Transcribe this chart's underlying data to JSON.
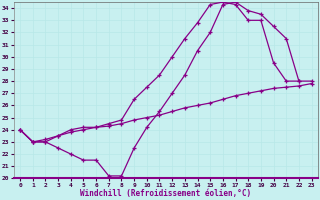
{
  "xlabel": "Windchill (Refroidissement éolien,°C)",
  "bg_color": "#c8f0f0",
  "grid_color": "#a0d8d8",
  "line_color": "#880088",
  "xlim": [
    -0.5,
    23.5
  ],
  "ylim": [
    20,
    34.5
  ],
  "xticks": [
    0,
    1,
    2,
    3,
    4,
    5,
    6,
    7,
    8,
    9,
    10,
    11,
    12,
    13,
    14,
    15,
    16,
    17,
    18,
    19,
    20,
    21,
    22,
    23
  ],
  "yticks": [
    20,
    21,
    22,
    23,
    24,
    25,
    26,
    27,
    28,
    29,
    30,
    31,
    32,
    33,
    34
  ],
  "line1_x": [
    0,
    1,
    2,
    3,
    4,
    5,
    6,
    7,
    8,
    9,
    10,
    11,
    12,
    13,
    14,
    15,
    16,
    17,
    18,
    19,
    20,
    21,
    22
  ],
  "line1_y": [
    24.0,
    23.0,
    23.0,
    22.5,
    22.0,
    21.5,
    21.5,
    20.2,
    20.2,
    22.5,
    24.2,
    25.5,
    27.0,
    28.5,
    30.5,
    32.0,
    34.3,
    34.5,
    33.8,
    33.5,
    32.5,
    31.5,
    28.0
  ],
  "line2_x": [
    0,
    1,
    2,
    3,
    4,
    5,
    6,
    7,
    8,
    9,
    10,
    11,
    12,
    13,
    14,
    15,
    16,
    17,
    18,
    19,
    20,
    21,
    22,
    23
  ],
  "line2_y": [
    24.0,
    23.0,
    23.0,
    23.5,
    24.0,
    24.2,
    24.2,
    24.5,
    24.8,
    26.5,
    27.5,
    28.5,
    30.0,
    31.5,
    32.8,
    34.3,
    34.5,
    34.3,
    33.0,
    33.0,
    29.5,
    28.0,
    28.0,
    28.0
  ],
  "line3_x": [
    0,
    1,
    2,
    3,
    4,
    5,
    6,
    7,
    8,
    9,
    10,
    11,
    12,
    13,
    14,
    15,
    16,
    17,
    18,
    19,
    20,
    21,
    22,
    23
  ],
  "line3_y": [
    24.0,
    23.0,
    23.2,
    23.5,
    23.8,
    24.0,
    24.2,
    24.3,
    24.5,
    24.8,
    25.0,
    25.2,
    25.5,
    25.8,
    26.0,
    26.2,
    26.5,
    26.8,
    27.0,
    27.2,
    27.4,
    27.5,
    27.6,
    27.8
  ]
}
